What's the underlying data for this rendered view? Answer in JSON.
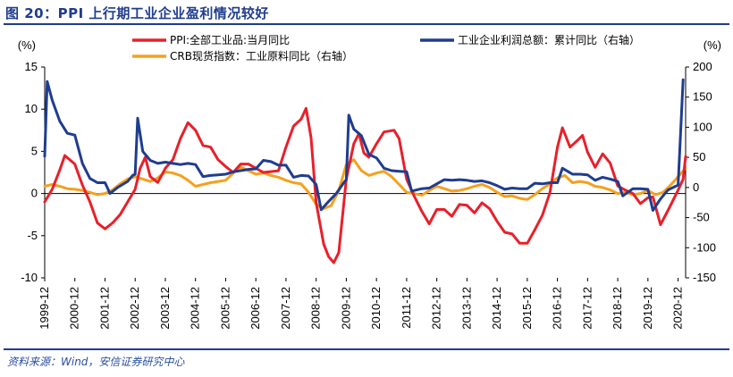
{
  "figure": {
    "title": "图 20：PPI 上行期工业企业盈利情况较好",
    "source": "资料来源：Wind，安信证券研究中心"
  },
  "colors": {
    "ppi": "#e8202a",
    "profit": "#1f3d8f",
    "crb": "#f5a01e",
    "header": "#1f3d8f"
  },
  "chart_data": {
    "type": "line",
    "left_axis": {
      "unit_label": "(%)",
      "ylim": [
        -10,
        15
      ],
      "ticks": [
        -10,
        -5,
        0,
        5,
        10,
        15
      ]
    },
    "right_axis": {
      "unit_label": "(%)",
      "ylim": [
        -150,
        200
      ],
      "ticks": [
        -150,
        -100,
        -50,
        0,
        50,
        100,
        150,
        200
      ]
    },
    "x_ticks": [
      "1999-12",
      "2000-12",
      "2001-12",
      "2002-12",
      "2003-12",
      "2004-12",
      "2005-12",
      "2006-12",
      "2007-12",
      "2008-12",
      "2009-12",
      "2010-12",
      "2011-12",
      "2012-12",
      "2013-12",
      "2014-12",
      "2015-12",
      "2016-12",
      "2017-12",
      "2018-12",
      "2019-12",
      "2020-12"
    ],
    "grid": false,
    "legend": "top",
    "series": [
      {
        "name": "PPI:全部工业品:当月同比",
        "axis": "left",
        "color": "#e8202a",
        "points": [
          [
            "1999-12",
            -1.0
          ],
          [
            "2000-03",
            0.5
          ],
          [
            "2000-06",
            2.8
          ],
          [
            "2000-08",
            4.5
          ],
          [
            "2000-12",
            3.5
          ],
          [
            "2001-03",
            1.0
          ],
          [
            "2001-06",
            -1.0
          ],
          [
            "2001-09",
            -3.5
          ],
          [
            "2001-12",
            -4.2
          ],
          [
            "2002-03",
            -3.5
          ],
          [
            "2002-06",
            -2.5
          ],
          [
            "2002-09",
            -1.0
          ],
          [
            "2002-12",
            0.5
          ],
          [
            "2003-02",
            3.0
          ],
          [
            "2003-04",
            4.3
          ],
          [
            "2003-06",
            2.0
          ],
          [
            "2003-09",
            1.3
          ],
          [
            "2003-12",
            3.0
          ],
          [
            "2004-03",
            4.0
          ],
          [
            "2004-06",
            6.5
          ],
          [
            "2004-09",
            8.4
          ],
          [
            "2004-12",
            7.5
          ],
          [
            "2005-03",
            5.7
          ],
          [
            "2005-06",
            5.5
          ],
          [
            "2005-09",
            4.0
          ],
          [
            "2005-12",
            3.2
          ],
          [
            "2006-03",
            2.5
          ],
          [
            "2006-06",
            3.5
          ],
          [
            "2006-09",
            3.5
          ],
          [
            "2006-12",
            3.0
          ],
          [
            "2007-03",
            2.5
          ],
          [
            "2007-06",
            2.6
          ],
          [
            "2007-09",
            2.7
          ],
          [
            "2007-12",
            5.5
          ],
          [
            "2008-03",
            8.0
          ],
          [
            "2008-06",
            8.8
          ],
          [
            "2008-08",
            10.1
          ],
          [
            "2008-10",
            6.6
          ],
          [
            "2008-12",
            -1.1
          ],
          [
            "2009-03",
            -6.0
          ],
          [
            "2009-05",
            -7.5
          ],
          [
            "2009-07",
            -8.2
          ],
          [
            "2009-09",
            -7.0
          ],
          [
            "2009-12",
            1.7
          ],
          [
            "2010-03",
            5.9
          ],
          [
            "2010-05",
            7.1
          ],
          [
            "2010-07",
            4.8
          ],
          [
            "2010-09",
            4.3
          ],
          [
            "2010-12",
            5.9
          ],
          [
            "2011-03",
            7.3
          ],
          [
            "2011-07",
            7.5
          ],
          [
            "2011-09",
            6.5
          ],
          [
            "2011-12",
            1.7
          ],
          [
            "2012-03",
            -0.3
          ],
          [
            "2012-06",
            -2.1
          ],
          [
            "2012-09",
            -3.6
          ],
          [
            "2012-12",
            -1.9
          ],
          [
            "2013-03",
            -1.9
          ],
          [
            "2013-06",
            -2.7
          ],
          [
            "2013-09",
            -1.3
          ],
          [
            "2013-12",
            -1.4
          ],
          [
            "2014-03",
            -2.3
          ],
          [
            "2014-06",
            -1.1
          ],
          [
            "2014-09",
            -1.8
          ],
          [
            "2014-12",
            -3.3
          ],
          [
            "2015-03",
            -4.6
          ],
          [
            "2015-06",
            -4.8
          ],
          [
            "2015-09",
            -5.9
          ],
          [
            "2015-12",
            -5.9
          ],
          [
            "2016-03",
            -4.3
          ],
          [
            "2016-06",
            -2.6
          ],
          [
            "2016-09",
            0.1
          ],
          [
            "2016-12",
            5.5
          ],
          [
            "2017-02",
            7.8
          ],
          [
            "2017-05",
            5.5
          ],
          [
            "2017-08",
            6.3
          ],
          [
            "2017-10",
            6.9
          ],
          [
            "2017-12",
            4.9
          ],
          [
            "2018-03",
            3.1
          ],
          [
            "2018-06",
            4.7
          ],
          [
            "2018-09",
            3.6
          ],
          [
            "2018-12",
            0.9
          ],
          [
            "2019-03",
            0.4
          ],
          [
            "2019-06",
            0.0
          ],
          [
            "2019-09",
            -1.2
          ],
          [
            "2019-12",
            -0.5
          ],
          [
            "2020-02",
            -0.4
          ],
          [
            "2020-05",
            -3.7
          ],
          [
            "2020-08",
            -2.0
          ],
          [
            "2020-12",
            0.4
          ],
          [
            "2021-02",
            1.7
          ],
          [
            "2021-03",
            4.4
          ]
        ]
      },
      {
        "name": "工业企业利润总额：累计同比（右轴）",
        "axis": "right",
        "color": "#1f3d8f",
        "points": [
          [
            "1999-12",
            52
          ],
          [
            "2000-01",
            176
          ],
          [
            "2000-03",
            145
          ],
          [
            "2000-06",
            110
          ],
          [
            "2000-09",
            90
          ],
          [
            "2000-12",
            87
          ],
          [
            "2001-03",
            40
          ],
          [
            "2001-06",
            15
          ],
          [
            "2001-09",
            8
          ],
          [
            "2001-12",
            8
          ],
          [
            "2002-02",
            -10
          ],
          [
            "2002-05",
            0
          ],
          [
            "2002-09",
            10
          ],
          [
            "2002-11",
            20
          ],
          [
            "2002-12",
            22
          ],
          [
            "2003-01",
            115
          ],
          [
            "2003-03",
            60
          ],
          [
            "2003-06",
            45
          ],
          [
            "2003-09",
            40
          ],
          [
            "2003-12",
            42
          ],
          [
            "2004-03",
            40
          ],
          [
            "2004-06",
            38
          ],
          [
            "2004-09",
            40
          ],
          [
            "2004-12",
            38
          ],
          [
            "2005-03",
            18
          ],
          [
            "2005-06",
            20
          ],
          [
            "2005-09",
            21
          ],
          [
            "2005-12",
            22
          ],
          [
            "2006-03",
            26
          ],
          [
            "2006-06",
            28
          ],
          [
            "2006-09",
            30
          ],
          [
            "2006-12",
            31
          ],
          [
            "2007-03",
            45
          ],
          [
            "2007-06",
            43
          ],
          [
            "2007-09",
            37
          ],
          [
            "2007-12",
            37
          ],
          [
            "2008-03",
            17
          ],
          [
            "2008-06",
            20
          ],
          [
            "2008-09",
            19
          ],
          [
            "2008-12",
            5
          ],
          [
            "2009-02",
            -37
          ],
          [
            "2009-05",
            -23
          ],
          [
            "2009-08",
            -10
          ],
          [
            "2009-11",
            8
          ],
          [
            "2009-12",
            13
          ],
          [
            "2010-01",
            120
          ],
          [
            "2010-03",
            97
          ],
          [
            "2010-06",
            86
          ],
          [
            "2010-09",
            55
          ],
          [
            "2010-12",
            49
          ],
          [
            "2011-03",
            32
          ],
          [
            "2011-06",
            28
          ],
          [
            "2011-09",
            27
          ],
          [
            "2011-12",
            26
          ],
          [
            "2012-02",
            -6
          ],
          [
            "2012-06",
            -2
          ],
          [
            "2012-09",
            -1
          ],
          [
            "2012-12",
            6
          ],
          [
            "2013-03",
            13
          ],
          [
            "2013-06",
            12
          ],
          [
            "2013-09",
            13
          ],
          [
            "2013-12",
            12
          ],
          [
            "2014-03",
            10
          ],
          [
            "2014-06",
            11
          ],
          [
            "2014-09",
            8
          ],
          [
            "2014-12",
            3
          ],
          [
            "2015-03",
            -3
          ],
          [
            "2015-06",
            -1
          ],
          [
            "2015-09",
            -2
          ],
          [
            "2015-12",
            -2
          ],
          [
            "2016-03",
            7
          ],
          [
            "2016-06",
            6
          ],
          [
            "2016-09",
            8
          ],
          [
            "2016-12",
            8
          ],
          [
            "2017-02",
            32
          ],
          [
            "2017-06",
            22
          ],
          [
            "2017-09",
            22
          ],
          [
            "2017-12",
            21
          ],
          [
            "2018-03",
            12
          ],
          [
            "2018-06",
            17
          ],
          [
            "2018-09",
            14
          ],
          [
            "2018-12",
            10
          ],
          [
            "2019-02",
            -14
          ],
          [
            "2019-06",
            -2
          ],
          [
            "2019-09",
            -2
          ],
          [
            "2019-12",
            -3
          ],
          [
            "2020-02",
            -38
          ],
          [
            "2020-05",
            -19
          ],
          [
            "2020-08",
            -4
          ],
          [
            "2020-11",
            2
          ],
          [
            "2020-12",
            4
          ],
          [
            "2021-02",
            179
          ]
        ]
      },
      {
        "name": "CRB现货指数：工业原料同比（右轴）",
        "axis": "right",
        "color": "#f5a01e",
        "points": [
          [
            "1999-12",
            2
          ],
          [
            "2000-03",
            5
          ],
          [
            "2000-06",
            2
          ],
          [
            "2000-09",
            -2
          ],
          [
            "2000-12",
            -3
          ],
          [
            "2001-03",
            -5
          ],
          [
            "2001-06",
            -8
          ],
          [
            "2001-09",
            -12
          ],
          [
            "2001-12",
            -10
          ],
          [
            "2002-03",
            -4
          ],
          [
            "2002-06",
            6
          ],
          [
            "2002-09",
            14
          ],
          [
            "2002-12",
            18
          ],
          [
            "2003-03",
            14
          ],
          [
            "2003-06",
            10
          ],
          [
            "2003-09",
            16
          ],
          [
            "2003-12",
            26
          ],
          [
            "2004-03",
            24
          ],
          [
            "2004-06",
            20
          ],
          [
            "2004-09",
            12
          ],
          [
            "2004-12",
            2
          ],
          [
            "2005-03",
            5
          ],
          [
            "2005-06",
            8
          ],
          [
            "2005-09",
            10
          ],
          [
            "2005-12",
            12
          ],
          [
            "2006-03",
            24
          ],
          [
            "2006-06",
            34
          ],
          [
            "2006-09",
            28
          ],
          [
            "2006-12",
            22
          ],
          [
            "2007-03",
            24
          ],
          [
            "2007-06",
            20
          ],
          [
            "2007-09",
            17
          ],
          [
            "2007-12",
            12
          ],
          [
            "2008-03",
            8
          ],
          [
            "2008-06",
            6
          ],
          [
            "2008-09",
            -8
          ],
          [
            "2008-12",
            -28
          ],
          [
            "2009-03",
            -35
          ],
          [
            "2009-06",
            -30
          ],
          [
            "2009-09",
            -5
          ],
          [
            "2009-12",
            38
          ],
          [
            "2010-03",
            46
          ],
          [
            "2010-06",
            28
          ],
          [
            "2010-09",
            20
          ],
          [
            "2010-12",
            24
          ],
          [
            "2011-03",
            27
          ],
          [
            "2011-06",
            18
          ],
          [
            "2011-09",
            5
          ],
          [
            "2011-12",
            -8
          ],
          [
            "2012-03",
            -10
          ],
          [
            "2012-06",
            -13
          ],
          [
            "2012-09",
            -5
          ],
          [
            "2012-12",
            2
          ],
          [
            "2013-03",
            -2
          ],
          [
            "2013-06",
            -6
          ],
          [
            "2013-09",
            -5
          ],
          [
            "2013-12",
            -2
          ],
          [
            "2014-03",
            2
          ],
          [
            "2014-06",
            5
          ],
          [
            "2014-09",
            0
          ],
          [
            "2014-12",
            -8
          ],
          [
            "2015-03",
            -15
          ],
          [
            "2015-06",
            -14
          ],
          [
            "2015-09",
            -18
          ],
          [
            "2015-12",
            -20
          ],
          [
            "2016-03",
            -12
          ],
          [
            "2016-06",
            -2
          ],
          [
            "2016-09",
            6
          ],
          [
            "2016-12",
            16
          ],
          [
            "2017-03",
            20
          ],
          [
            "2017-06",
            8
          ],
          [
            "2017-09",
            10
          ],
          [
            "2017-12",
            8
          ],
          [
            "2018-03",
            2
          ],
          [
            "2018-06",
            0
          ],
          [
            "2018-09",
            -4
          ],
          [
            "2018-12",
            -10
          ],
          [
            "2019-03",
            -8
          ],
          [
            "2019-06",
            -12
          ],
          [
            "2019-09",
            -10
          ],
          [
            "2019-12",
            -5
          ],
          [
            "2020-03",
            -12
          ],
          [
            "2020-06",
            -8
          ],
          [
            "2020-09",
            4
          ],
          [
            "2020-12",
            18
          ],
          [
            "2021-03",
            32
          ]
        ]
      }
    ]
  }
}
